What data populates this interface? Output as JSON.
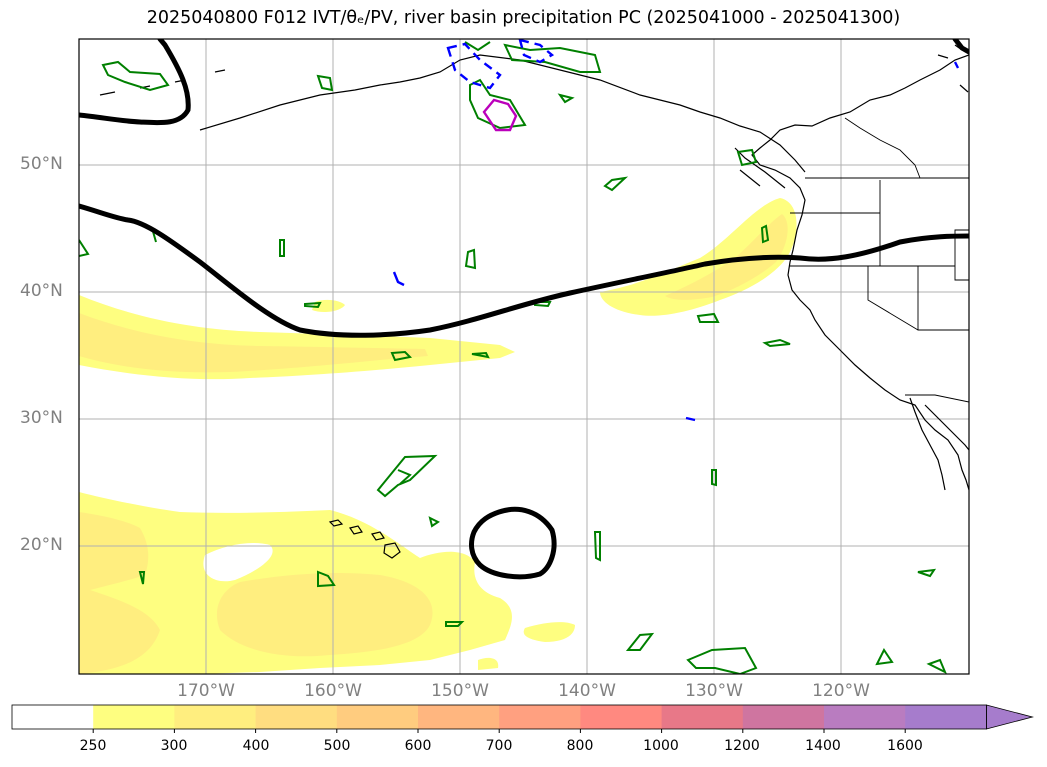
{
  "title": "2025040800 F012 IVT/θₑ/PV, river basin precipitation PC (2025041000 - 2025041300)",
  "lat_labels": [
    "50°N",
    "40°N",
    "30°N",
    "20°N"
  ],
  "lon_labels": [
    "170°W",
    "160°W",
    "150°W",
    "140°W",
    "130°W",
    "120°W"
  ],
  "colorbar": {
    "ticks": [
      "250",
      "300",
      "400",
      "500",
      "600",
      "700",
      "800",
      "1000",
      "1200",
      "1400",
      "1600"
    ],
    "colors": [
      "#ffffff",
      "#fefe80",
      "#ffee7f",
      "#ffdd80",
      "#ffcc7f",
      "#ffb67f",
      "#ffa080",
      "#ff8980",
      "#e87888",
      "#cf75a0",
      "#b97cc0",
      "#a67ccc"
    ],
    "extend": "max"
  },
  "map_colors": {
    "ivt_light": "#fefe80",
    "ivt_dark": "#ffee7f",
    "pv_contour": "#008000",
    "pv_negative": "#0000ff",
    "pv_strong": "#bb00bb",
    "theta_e": "#000000",
    "grid": "#b0b0b0"
  }
}
